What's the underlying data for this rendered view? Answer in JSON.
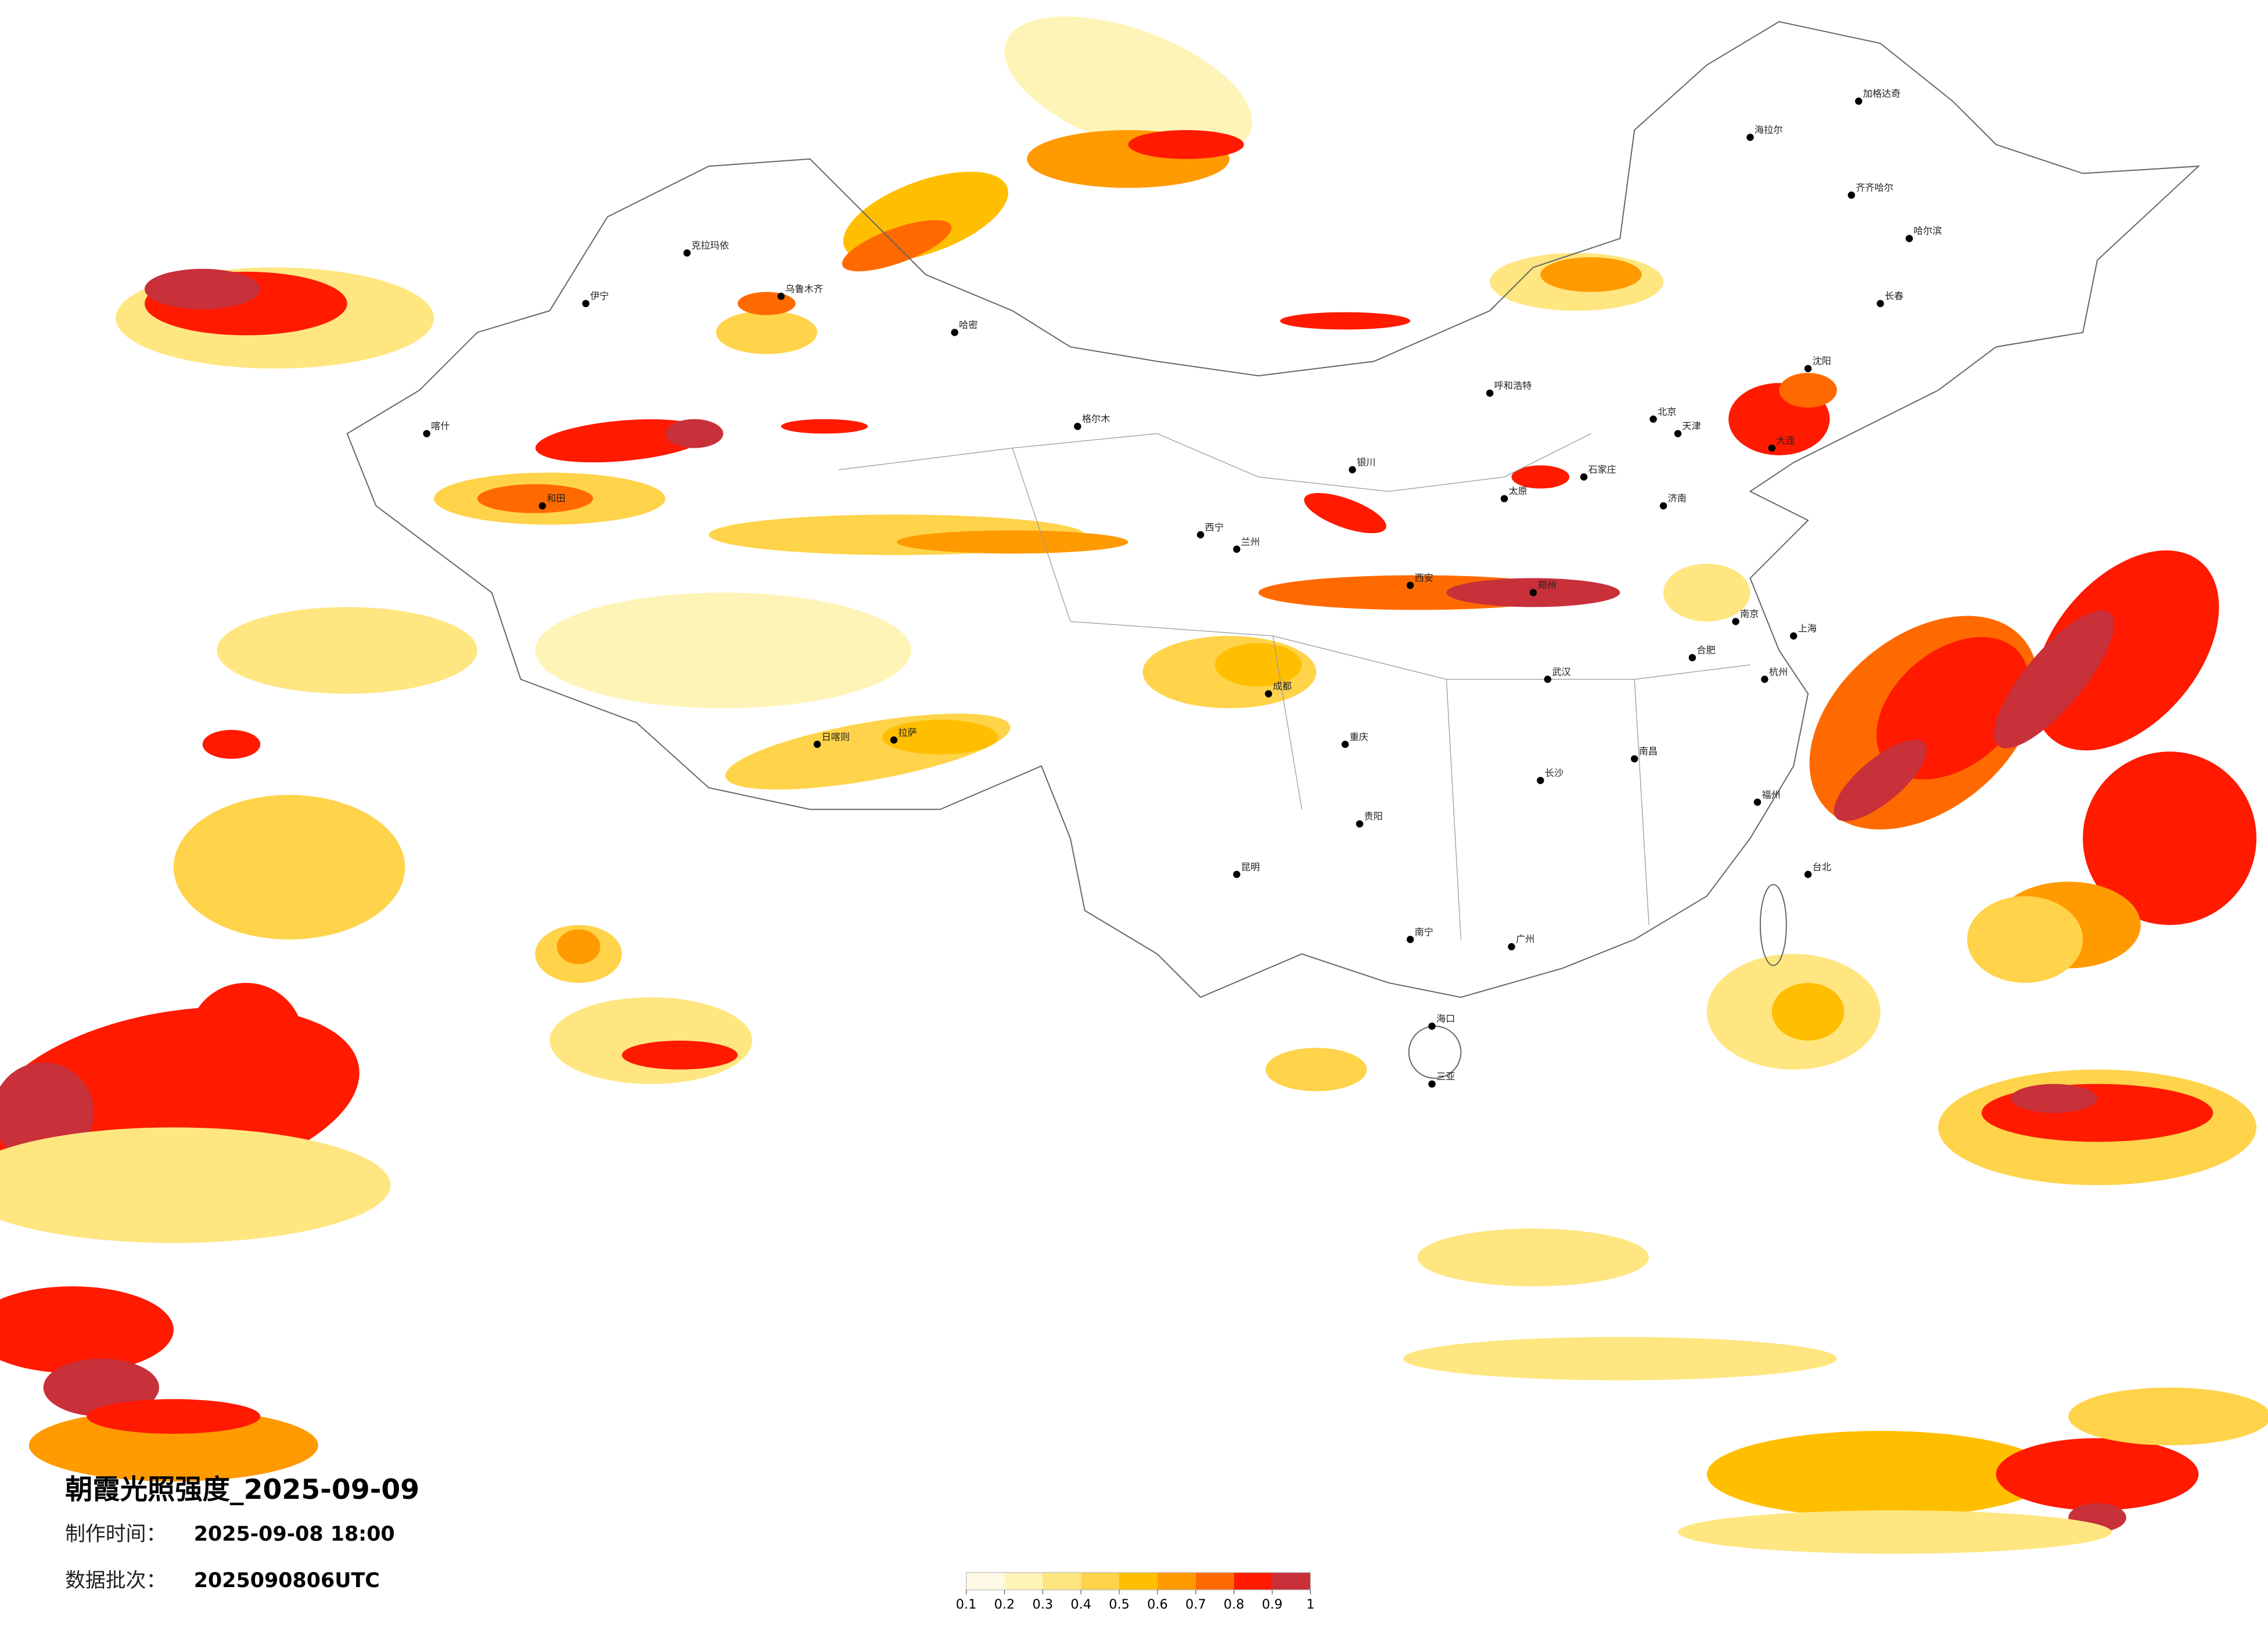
{
  "title": "朝霞光照强度_2025-09-09",
  "made_time_label": "制作时间：",
  "made_time": "2025-09-08 18:00",
  "batch_label": "数据批次：",
  "batch": "2025090806UTC",
  "legend": {
    "ticks": [
      0.1,
      0.2,
      0.3,
      0.4,
      0.5,
      0.6,
      0.7,
      0.8,
      0.9,
      1
    ],
    "colors": [
      "#fffbe8",
      "#fff4b8",
      "#ffe680",
      "#ffd34a",
      "#ffbf00",
      "#ff9a00",
      "#ff6a00",
      "#ff1a00",
      "#c8303a"
    ]
  },
  "cities": [
    "北京",
    "上海",
    "广州",
    "成都",
    "重庆",
    "武汉",
    "西安",
    "拉萨",
    "乌鲁木齐",
    "哈尔滨",
    "昆明",
    "兰州",
    "呼和浩特",
    "南京",
    "杭州",
    "福州",
    "海口",
    "台北",
    "沈阳",
    "长春",
    "郑州",
    "长沙",
    "南昌",
    "贵阳",
    "南宁",
    "济南",
    "太原",
    "石家庄",
    "银川",
    "西宁",
    "合肥",
    "天津",
    "喀什",
    "伊宁",
    "克拉玛依",
    "哈密",
    "和田",
    "日喀则",
    "海拉尔",
    "加格达奇",
    "齐齐哈尔",
    "三亚",
    "大连",
    "格尔木"
  ]
}
